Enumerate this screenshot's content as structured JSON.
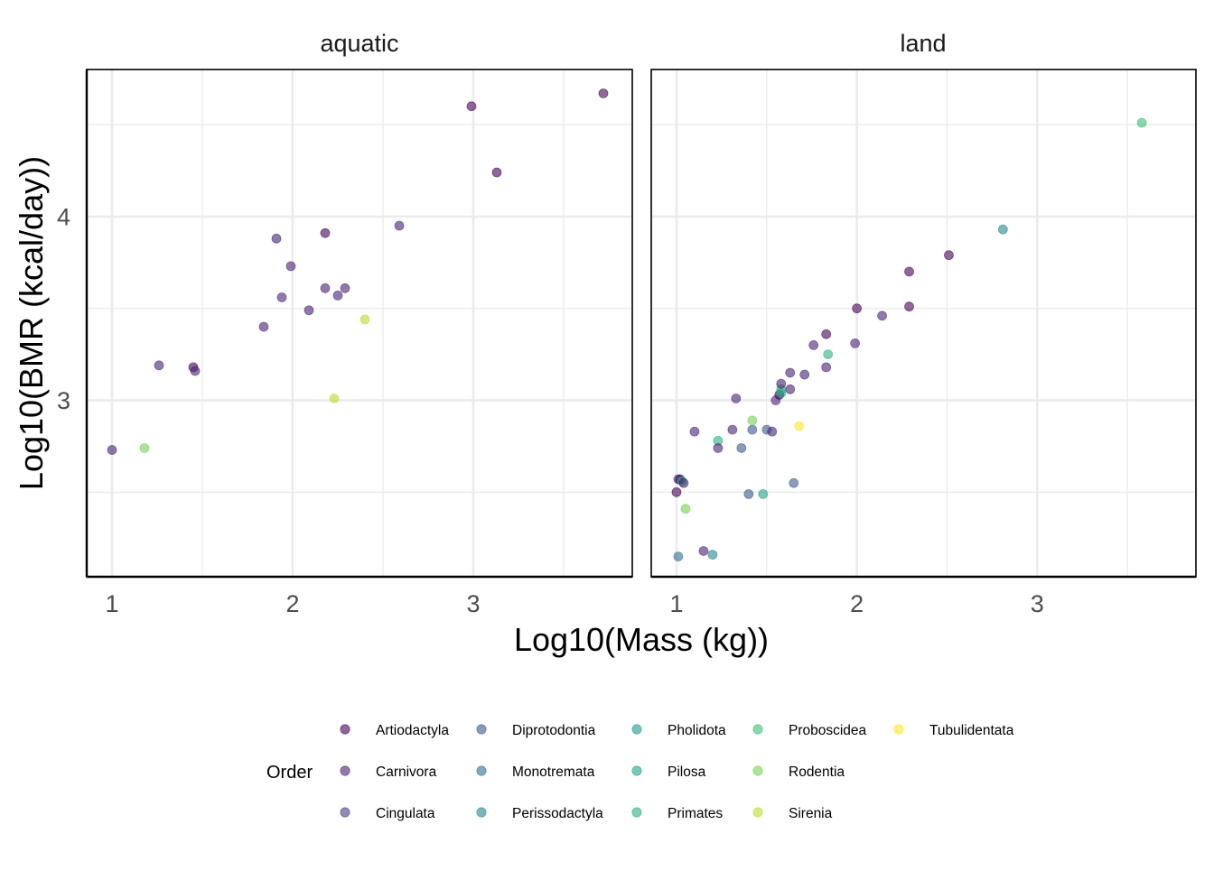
{
  "chart_data": {
    "type": "scatter",
    "facet_variable": "",
    "xlabel": "Log10(Mass (kg))",
    "ylabel": "Log10(BMR (kcal/day))",
    "xlim": [
      0.86,
      3.88
    ],
    "ylim": [
      2.04,
      4.8
    ],
    "x_ticks": [
      1,
      2,
      3
    ],
    "y_ticks": [
      3,
      4
    ],
    "x_minor": [
      1.5,
      2.5,
      3.5
    ],
    "y_minor": [
      2.5,
      3.5,
      4.5
    ],
    "grid": true,
    "point_alpha": 0.6,
    "legend": {
      "title": "Order",
      "position": "bottom",
      "entries": [
        {
          "name": "Artiodactyla",
          "color": "#440154"
        },
        {
          "name": "Carnivora",
          "color": "#482173"
        },
        {
          "name": "Cingulata",
          "color": "#433E85"
        },
        {
          "name": "Diprotodontia",
          "color": "#38598C"
        },
        {
          "name": "Monotremata",
          "color": "#2D708E"
        },
        {
          "name": "Perissodactyla",
          "color": "#25858E"
        },
        {
          "name": "Pholidota",
          "color": "#1E9B8A"
        },
        {
          "name": "Pilosa",
          "color": "#20A386"
        },
        {
          "name": "Primates",
          "color": "#29AF7F"
        },
        {
          "name": "Proboscidea",
          "color": "#3CBC75"
        },
        {
          "name": "Rodentia",
          "color": "#75D054"
        },
        {
          "name": "Sirenia",
          "color": "#B8DE29"
        },
        {
          "name": "Tubulidentata",
          "color": "#FDE725"
        }
      ]
    },
    "panels": [
      {
        "title": "aquatic",
        "points": [
          {
            "x": 1.0,
            "y": 2.73,
            "order": "Carnivora"
          },
          {
            "x": 1.18,
            "y": 2.74,
            "order": "Rodentia"
          },
          {
            "x": 1.26,
            "y": 3.19,
            "order": "Carnivora"
          },
          {
            "x": 1.45,
            "y": 3.18,
            "order": "Artiodactyla"
          },
          {
            "x": 1.46,
            "y": 3.16,
            "order": "Carnivora"
          },
          {
            "x": 1.84,
            "y": 3.4,
            "order": "Carnivora"
          },
          {
            "x": 1.91,
            "y": 3.88,
            "order": "Carnivora"
          },
          {
            "x": 1.94,
            "y": 3.56,
            "order": "Carnivora"
          },
          {
            "x": 1.99,
            "y": 3.73,
            "order": "Carnivora"
          },
          {
            "x": 2.09,
            "y": 3.49,
            "order": "Carnivora"
          },
          {
            "x": 2.18,
            "y": 3.91,
            "order": "Artiodactyla"
          },
          {
            "x": 2.18,
            "y": 3.61,
            "order": "Carnivora"
          },
          {
            "x": 2.23,
            "y": 3.01,
            "order": "Sirenia"
          },
          {
            "x": 2.25,
            "y": 3.57,
            "order": "Carnivora"
          },
          {
            "x": 2.29,
            "y": 3.61,
            "order": "Carnivora"
          },
          {
            "x": 2.4,
            "y": 3.44,
            "order": "Sirenia"
          },
          {
            "x": 2.59,
            "y": 3.95,
            "order": "Carnivora"
          },
          {
            "x": 2.99,
            "y": 4.6,
            "order": "Artiodactyla"
          },
          {
            "x": 3.13,
            "y": 4.24,
            "order": "Artiodactyla"
          },
          {
            "x": 3.72,
            "y": 4.67,
            "order": "Artiodactyla"
          }
        ]
      },
      {
        "title": "land",
        "points": [
          {
            "x": 1.0,
            "y": 2.5,
            "order": "Artiodactyla"
          },
          {
            "x": 1.01,
            "y": 2.57,
            "order": "Carnivora"
          },
          {
            "x": 1.02,
            "y": 2.57,
            "order": "Artiodactyla"
          },
          {
            "x": 1.03,
            "y": 2.56,
            "order": "Primates"
          },
          {
            "x": 1.04,
            "y": 2.55,
            "order": "Carnivora"
          },
          {
            "x": 1.01,
            "y": 2.15,
            "order": "Monotremata"
          },
          {
            "x": 1.05,
            "y": 2.41,
            "order": "Rodentia"
          },
          {
            "x": 1.1,
            "y": 2.83,
            "order": "Carnivora"
          },
          {
            "x": 1.15,
            "y": 2.18,
            "order": "Carnivora"
          },
          {
            "x": 1.2,
            "y": 2.16,
            "order": "Perissodactyla"
          },
          {
            "x": 1.23,
            "y": 2.78,
            "order": "Primates"
          },
          {
            "x": 1.23,
            "y": 2.74,
            "order": "Carnivora"
          },
          {
            "x": 1.31,
            "y": 2.84,
            "order": "Carnivora"
          },
          {
            "x": 1.33,
            "y": 3.01,
            "order": "Carnivora"
          },
          {
            "x": 1.36,
            "y": 2.74,
            "order": "Diprotodontia"
          },
          {
            "x": 1.4,
            "y": 2.49,
            "order": "Diprotodontia"
          },
          {
            "x": 1.42,
            "y": 2.84,
            "order": "Diprotodontia"
          },
          {
            "x": 1.42,
            "y": 2.89,
            "order": "Rodentia"
          },
          {
            "x": 1.48,
            "y": 2.49,
            "order": "Pilosa"
          },
          {
            "x": 1.5,
            "y": 2.84,
            "order": "Diprotodontia"
          },
          {
            "x": 1.53,
            "y": 2.83,
            "order": "Carnivora"
          },
          {
            "x": 1.55,
            "y": 3.0,
            "order": "Carnivora"
          },
          {
            "x": 1.57,
            "y": 3.03,
            "order": "Artiodactyla"
          },
          {
            "x": 1.58,
            "y": 3.04,
            "order": "Pholidota"
          },
          {
            "x": 1.58,
            "y": 3.06,
            "order": "Primates"
          },
          {
            "x": 1.58,
            "y": 3.09,
            "order": "Carnivora"
          },
          {
            "x": 1.63,
            "y": 3.06,
            "order": "Carnivora"
          },
          {
            "x": 1.63,
            "y": 3.15,
            "order": "Carnivora"
          },
          {
            "x": 1.65,
            "y": 2.55,
            "order": "Diprotodontia"
          },
          {
            "x": 1.68,
            "y": 2.86,
            "order": "Tubulidentata"
          },
          {
            "x": 1.71,
            "y": 3.14,
            "order": "Carnivora"
          },
          {
            "x": 1.76,
            "y": 3.3,
            "order": "Carnivora"
          },
          {
            "x": 1.83,
            "y": 3.18,
            "order": "Carnivora"
          },
          {
            "x": 1.83,
            "y": 3.36,
            "order": "Artiodactyla"
          },
          {
            "x": 1.84,
            "y": 3.25,
            "order": "Primates"
          },
          {
            "x": 1.99,
            "y": 3.31,
            "order": "Carnivora"
          },
          {
            "x": 2.0,
            "y": 3.5,
            "order": "Artiodactyla"
          },
          {
            "x": 2.14,
            "y": 3.46,
            "order": "Carnivora"
          },
          {
            "x": 2.29,
            "y": 3.7,
            "order": "Artiodactyla"
          },
          {
            "x": 2.29,
            "y": 3.51,
            "order": "Artiodactyla"
          },
          {
            "x": 2.51,
            "y": 3.79,
            "order": "Artiodactyla"
          },
          {
            "x": 2.81,
            "y": 3.93,
            "order": "Perissodactyla"
          },
          {
            "x": 3.58,
            "y": 4.51,
            "order": "Proboscidea"
          }
        ]
      }
    ]
  }
}
